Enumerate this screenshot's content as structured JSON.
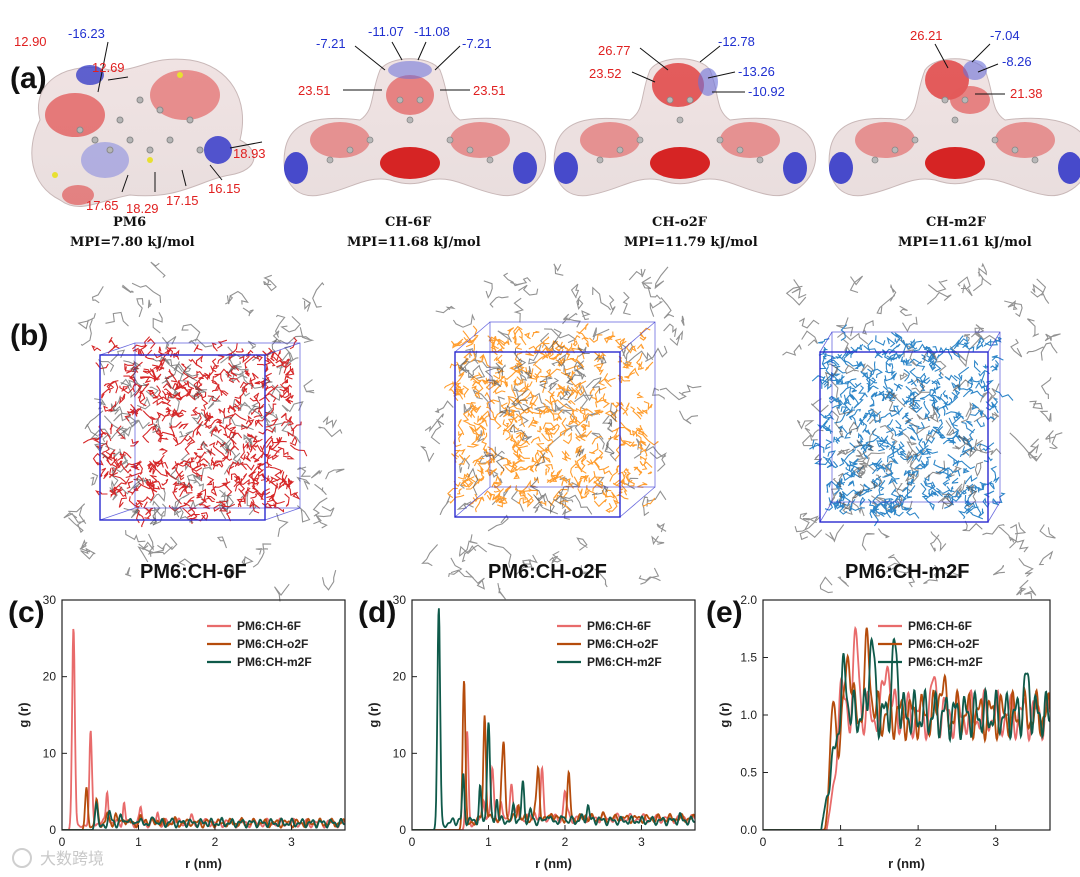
{
  "panel_labels": {
    "a": "(a)",
    "b": "(b)",
    "c": "(c)",
    "d": "(d)",
    "e": "(e)"
  },
  "esp": {
    "pm6": {
      "name": "PM6",
      "mpi": "MPI=7.80 kJ/mol",
      "labels": {
        "l1": "12.90",
        "l2": "-16.23",
        "l3": "12.69",
        "l4": "18.93",
        "l5": "16.15",
        "l6": "17.15",
        "l7": "18.29",
        "l8": "17.65"
      }
    },
    "ch6f": {
      "name": "CH-6F",
      "mpi": "MPI=11.68 kJ/mol",
      "labels": {
        "l1": "-7.21",
        "l2": "-11.07",
        "l3": "-11.08",
        "l4": "-7.21",
        "l5": "23.51",
        "l6": "23.51"
      }
    },
    "cho2f": {
      "name": "CH-o2F",
      "mpi": "MPI=11.79 kJ/mol",
      "labels": {
        "l1": "26.77",
        "l2": "23.52",
        "l3": "-12.78",
        "l4": "-13.26",
        "l5": "-10.92"
      }
    },
    "chm2f": {
      "name": "CH-m2F",
      "mpi": "MPI=11.61 kJ/mol",
      "labels": {
        "l1": "26.21",
        "l2": "-7.04",
        "l3": "-8.26",
        "l4": "21.38"
      }
    }
  },
  "md_boxes": {
    "b1": {
      "label": "PM6:CH-6F",
      "color": "#d62728"
    },
    "b2": {
      "label": "PM6:CH-o2F",
      "color": "#ff9d2e"
    },
    "b3": {
      "label": "PM6:CH-m2F",
      "color": "#2e86c8"
    }
  },
  "colors": {
    "ch6f": "#e86b6b",
    "cho2f": "#b54c0c",
    "chm2f": "#0f5a4a",
    "box": "#2a2ad0",
    "polymer": "#6e6e6e"
  },
  "watermark": "大数跨境",
  "chart_data": [
    {
      "id": "c",
      "type": "line",
      "xlabel": "r (nm)",
      "ylabel": "g (r)",
      "xlim": [
        0,
        3.7
      ],
      "ylim": [
        0,
        30
      ],
      "xticks": [
        0,
        1,
        2,
        3
      ],
      "yticks": [
        0,
        10,
        20,
        30
      ],
      "series": [
        {
          "name": "PM6:CH-6F",
          "peaks": [
            [
              0.15,
              27.2
            ],
            [
              0.38,
              7.6
            ],
            [
              0.6,
              1.6
            ],
            [
              1.0,
              1.2
            ]
          ],
          "base": 0.9
        },
        {
          "name": "PM6:CH-o2F",
          "peaks": [
            [
              0.32,
              6.2
            ],
            [
              0.45,
              4.0
            ],
            [
              0.7,
              2.0
            ],
            [
              1.1,
              1.4
            ]
          ],
          "base": 0.9
        },
        {
          "name": "PM6:CH-m2F",
          "peaks": [
            [
              0.45,
              4.3
            ],
            [
              0.62,
              2.4
            ],
            [
              0.85,
              1.6
            ],
            [
              1.2,
              1.3
            ]
          ],
          "base": 0.9
        }
      ]
    },
    {
      "id": "d",
      "type": "line",
      "xlabel": "r (nm)",
      "ylabel": "g (r)",
      "xlim": [
        0,
        3.7
      ],
      "ylim": [
        0,
        30
      ],
      "xticks": [
        0,
        1,
        2,
        3
      ],
      "yticks": [
        0,
        10,
        20,
        30
      ],
      "series": [
        {
          "name": "PM6:CH-6F",
          "peaks": [
            [
              0.72,
              14.0
            ],
            [
              1.05,
              8.0
            ],
            [
              1.3,
              6.5
            ],
            [
              1.7,
              7.5
            ],
            [
              2.0,
              5.0
            ]
          ],
          "base": 1.5
        },
        {
          "name": "PM6:CH-o2F",
          "peaks": [
            [
              0.68,
              20.8
            ],
            [
              0.95,
              11.0
            ],
            [
              1.2,
              11.0
            ],
            [
              1.65,
              7.8
            ],
            [
              2.05,
              6.4
            ]
          ],
          "base": 1.5
        },
        {
          "name": "PM6:CH-m2F",
          "peaks": [
            [
              0.35,
              30.0
            ],
            [
              1.0,
              14.4
            ],
            [
              1.45,
              6.0
            ],
            [
              2.3,
              3.2
            ],
            [
              3.5,
              1.8
            ]
          ],
          "base": 1.2
        }
      ]
    },
    {
      "id": "e",
      "type": "line",
      "xlabel": "r (nm)",
      "ylabel": "g (r)",
      "xlim": [
        0,
        3.7
      ],
      "ylim": [
        0,
        2.0
      ],
      "xticks": [
        0,
        1,
        2,
        3
      ],
      "yticks": [
        0.0,
        0.5,
        1.0,
        1.5,
        2.0
      ],
      "series": [
        {
          "name": "PM6:CH-6F",
          "onset": 0.82,
          "peaks": [
            [
              1.0,
              1.48
            ],
            [
              1.2,
              1.62
            ],
            [
              1.6,
              1.5
            ],
            [
              2.2,
              1.25
            ]
          ],
          "base": 1.0
        },
        {
          "name": "PM6:CH-o2F",
          "onset": 0.8,
          "peaks": [
            [
              0.9,
              1.68
            ],
            [
              1.1,
              1.55
            ],
            [
              1.35,
              1.6
            ],
            [
              2.3,
              1.3
            ]
          ],
          "base": 1.0
        },
        {
          "name": "PM6:CH-m2F",
          "onset": 0.75,
          "peaks": [
            [
              1.05,
              1.35
            ],
            [
              1.4,
              1.63
            ],
            [
              1.7,
              1.58
            ],
            [
              3.4,
              1.3
            ]
          ],
          "base": 1.0
        }
      ]
    }
  ]
}
